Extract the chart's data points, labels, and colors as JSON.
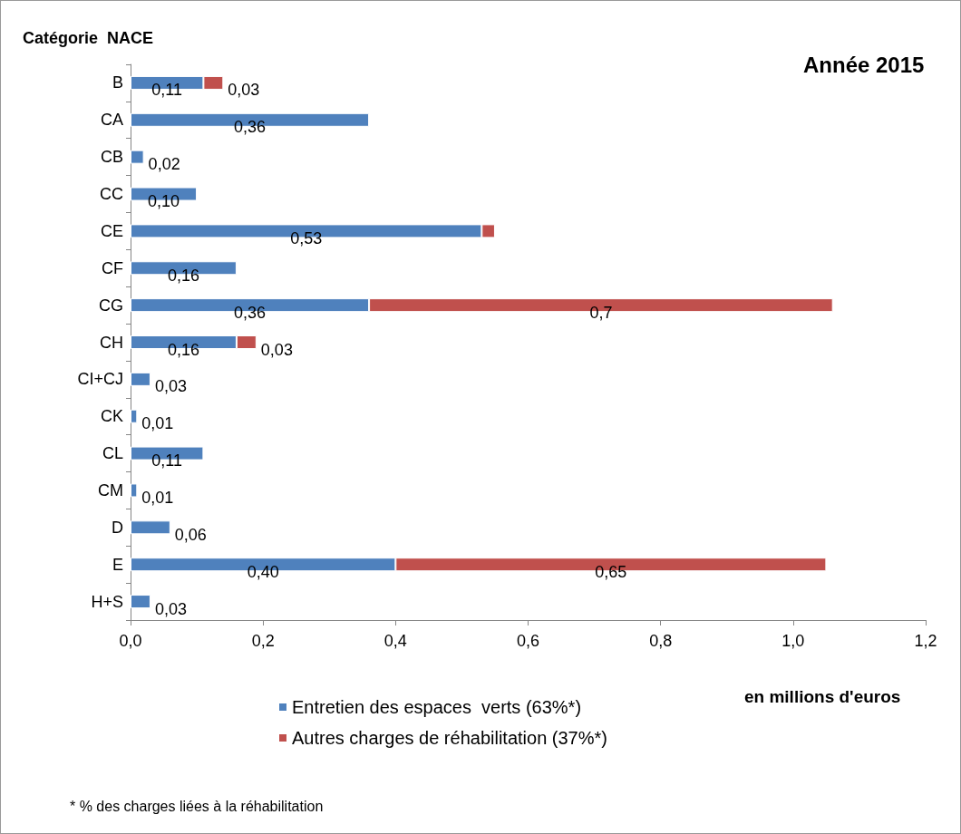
{
  "chart_data": {
    "type": "bar",
    "orientation": "horizontal",
    "stacked": true,
    "title": "Année 2015",
    "ylabel": "Catégorie  NACE",
    "xlabel": "en millions d'euros",
    "categories": [
      "B",
      "CA",
      "CB",
      "CC",
      "CE",
      "CF",
      "CG",
      "CH",
      "CI+CJ",
      "CK",
      "CL",
      "CM",
      "D",
      "E",
      "H+S"
    ],
    "series": [
      {
        "name": "Entretien des espaces  verts (63%*)",
        "color": "#4f81bd",
        "values": [
          0.11,
          0.36,
          0.02,
          0.1,
          0.53,
          0.16,
          0.36,
          0.16,
          0.03,
          0.01,
          0.11,
          0.01,
          0.06,
          0.4,
          0.03
        ],
        "value_labels": [
          "0,11",
          "0,36",
          "0,02",
          "0,10",
          "0,53",
          "0,16",
          "0,36",
          "0,16",
          "0,03",
          "0,01",
          "0,11",
          "0,01",
          "0,06",
          "0,40",
          "0,03"
        ]
      },
      {
        "name": "Autres charges de réhabilitation (37%*)",
        "color": "#c0504d",
        "values": [
          0.03,
          null,
          null,
          null,
          0.02,
          null,
          0.7,
          0.03,
          null,
          null,
          null,
          null,
          null,
          0.65,
          null
        ],
        "value_labels": [
          "0,03",
          null,
          null,
          null,
          null,
          null,
          "0,7",
          "0,03",
          null,
          null,
          null,
          null,
          null,
          "0,65",
          null
        ]
      }
    ],
    "xlim": [
      0,
      1.2
    ],
    "xticks": [
      {
        "value": 0,
        "label": "0,0"
      },
      {
        "value": 0.2,
        "label": "0,2"
      },
      {
        "value": 0.4,
        "label": "0,4"
      },
      {
        "value": 0.6,
        "label": "0,6"
      },
      {
        "value": 0.8,
        "label": "0,8"
      },
      {
        "value": 1.0,
        "label": "1,0"
      },
      {
        "value": 1.2,
        "label": "1,2"
      }
    ],
    "grid": false,
    "legend": "bottom",
    "annotations": [
      "* % des charges liées à la réhabilitation"
    ]
  }
}
